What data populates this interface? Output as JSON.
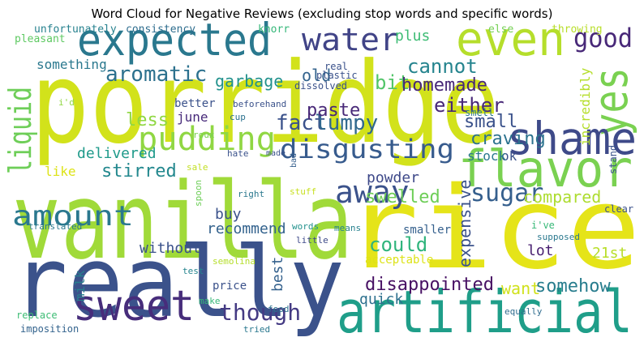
{
  "chart_data": {
    "type": "wordcloud",
    "title": "Word Cloud for Negative Reviews (excluding stop words and specific words)",
    "words": [
      "porridge",
      "vanilla",
      "really",
      "rice",
      "artificial",
      "expected",
      "water",
      "even",
      "good",
      "yes",
      "shame",
      "flavor",
      "liquid",
      "pudding",
      "fact",
      "lumpy",
      "paste",
      "disgusting",
      "sugar",
      "amount",
      "away",
      "sweet",
      "though",
      "aromatic",
      "something",
      "unfortunately",
      "consistency",
      "pleasant",
      "knorr",
      "plus",
      "bit",
      "cannot",
      "homemade",
      "either",
      "small",
      "craving",
      "ok",
      "stock",
      "garbage",
      "old",
      "better",
      "june",
      "less",
      "delivered",
      "like",
      "stirred",
      "buy",
      "powder",
      "swelled",
      "compared",
      "could",
      "expensive",
      "lot",
      "21st",
      "smaller",
      "recommend",
      "without",
      "best",
      "milk",
      "disappointed",
      "quick",
      "want",
      "somehow",
      "acceptable",
      "price",
      "test",
      "semolina",
      "make",
      "food",
      "tried",
      "little",
      "words",
      "means",
      "right",
      "stuff",
      "spoon",
      "sale",
      "bad",
      "made",
      "hate",
      "cup",
      "roux",
      "beforehand",
      "dissolved",
      "plastic",
      "real",
      "else",
      "throwing",
      "incredibly",
      "stand",
      "smell",
      "clear",
      "i've",
      "supposed",
      "equally",
      "translated",
      "replace",
      "imposition",
      "i'd"
    ]
  }
}
